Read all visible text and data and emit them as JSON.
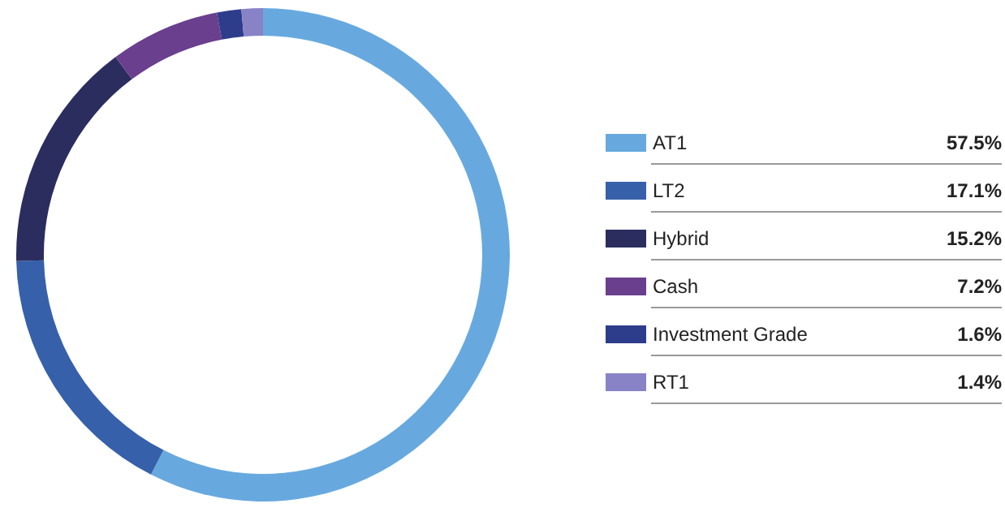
{
  "chart_data": {
    "type": "donut",
    "categories": [
      "AT1",
      "LT2",
      "Hybrid",
      "Cash",
      "Investment Grade",
      "RT1"
    ],
    "values": [
      57.5,
      17.1,
      15.2,
      7.2,
      1.6,
      1.4
    ],
    "colors": [
      "#67a9df",
      "#3760aa",
      "#2b2d5f",
      "#6a3f8e",
      "#2e3c8c",
      "#8883c6"
    ],
    "value_labels": [
      "57.5%",
      "17.1%",
      "15.2%",
      "7.2%",
      "1.6%",
      "1.4%"
    ],
    "legend": "right"
  }
}
